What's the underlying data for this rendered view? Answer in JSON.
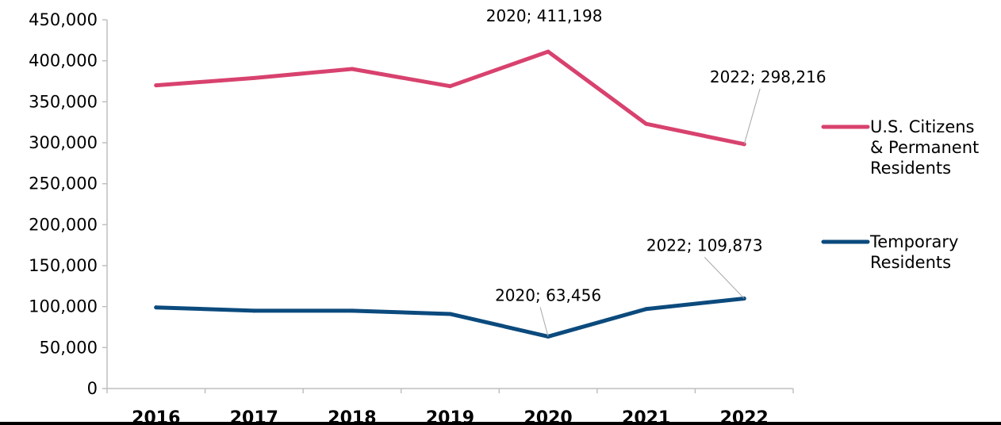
{
  "chart_data": {
    "type": "line",
    "x": [
      "2016",
      "2017",
      "2018",
      "2019",
      "2020",
      "2021",
      "2022"
    ],
    "ylim": [
      0,
      450000
    ],
    "yticks": [
      "450,000",
      "400,000",
      "350,000",
      "300,000",
      "250,000",
      "200,000",
      "150,000",
      "100,000",
      "50,000",
      "0"
    ],
    "grid": false,
    "legend_position": "right",
    "series": [
      {
        "name": "U.S. Citizens & Permanent Residents",
        "color": "#d8426e",
        "values": [
          370000,
          379000,
          390000,
          369000,
          411198,
          323000,
          298216
        ]
      },
      {
        "name": "Temporary Residents",
        "color": "#0b4a7d",
        "values": [
          99000,
          95000,
          95000,
          91000,
          63456,
          97000,
          109873
        ]
      }
    ],
    "annotations": [
      {
        "text": "2020; 411,198",
        "series": 0,
        "point": 4
      },
      {
        "text": "2022; 298,216",
        "series": 0,
        "point": 6
      },
      {
        "text": "2020; 63,456",
        "series": 1,
        "point": 4
      },
      {
        "text": "2022; 109,873",
        "series": 1,
        "point": 6
      }
    ]
  }
}
